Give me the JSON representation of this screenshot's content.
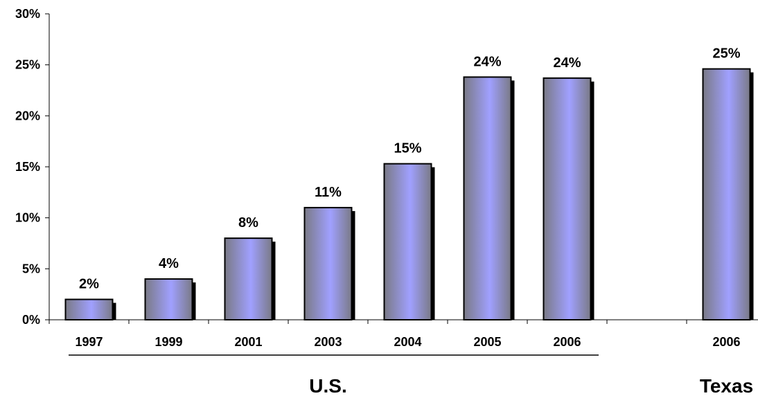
{
  "chart_data": {
    "type": "bar",
    "title": "",
    "xlabel": "",
    "ylabel": "",
    "ylim": [
      0,
      30
    ],
    "yticks": [
      "0%",
      "5%",
      "10%",
      "15%",
      "20%",
      "25%",
      "30%"
    ],
    "ytick_values": [
      0,
      5,
      10,
      15,
      20,
      25,
      30
    ],
    "grid": false,
    "legend": "none",
    "categories": [
      "1997",
      "1999",
      "2001",
      "2003",
      "2004",
      "2005",
      "2006",
      "",
      "2006"
    ],
    "values": [
      2,
      4,
      8,
      11,
      15.3,
      23.8,
      23.7,
      null,
      24.6
    ],
    "data_labels": [
      "2%",
      "4%",
      "8%",
      "11%",
      "15%",
      "24%",
      "24%",
      "",
      "25%"
    ],
    "groups": [
      {
        "label": "U.S.",
        "first_index": 0,
        "last_index": 6
      },
      {
        "label": "Texas",
        "first_index": 8,
        "last_index": 8
      }
    ],
    "colors": {
      "bar_center": "#a0a0ff",
      "bar_edge": "#7a7a86",
      "bar_outline": "#000000",
      "bar_shadow": "#000000",
      "axis": "#000000"
    }
  }
}
